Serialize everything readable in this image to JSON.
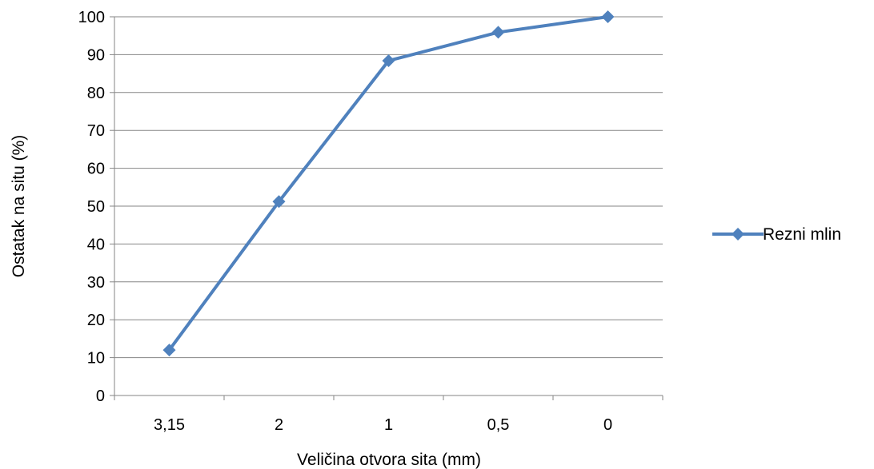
{
  "chart_data": {
    "type": "line",
    "categories": [
      "3,15",
      "2",
      "1",
      "0,5",
      "0"
    ],
    "series": [
      {
        "name": "Rezni mlin",
        "values": [
          12,
          51.2,
          88.4,
          95.9,
          100
        ],
        "color": "#4F81BD",
        "marker": "diamond"
      }
    ],
    "xlabel": "Veličina otvora sita (mm)",
    "ylabel": "Ostatak na situ (%)",
    "ylim": [
      0,
      100
    ],
    "yticks": [
      "0",
      "10",
      "20",
      "30",
      "40",
      "50",
      "60",
      "70",
      "80",
      "90",
      "100"
    ],
    "grid": true,
    "legend_position": "right",
    "gridline_color": "#868686",
    "axis_color": "#868686"
  }
}
